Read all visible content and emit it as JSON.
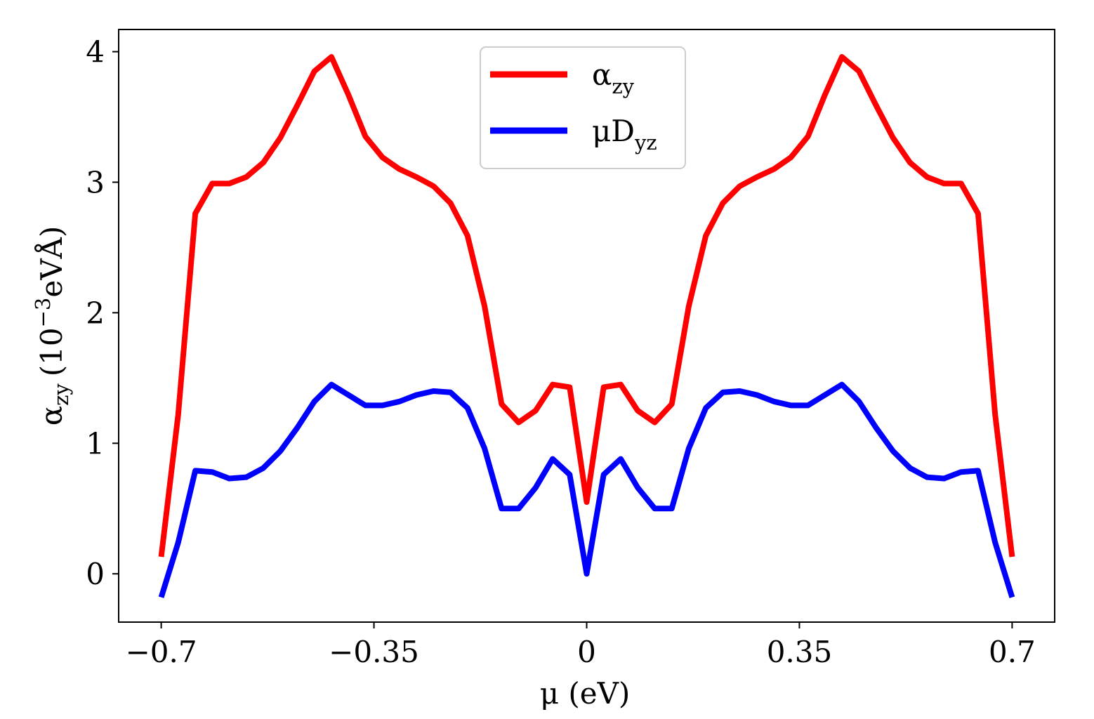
{
  "chart_data": {
    "type": "line",
    "title": "",
    "xlabel": "μ (eV)",
    "ylabel_main": "α",
    "ylabel_sub": "zy",
    "ylabel_unit_prefix": "(10",
    "ylabel_unit_exp": "−3",
    "ylabel_unit_suffix": "eVÅ)",
    "xlim": [
      -0.77,
      0.77
    ],
    "ylim": [
      -0.37,
      4.17
    ],
    "xticks": [
      -0.7,
      -0.35,
      0,
      0.35,
      0.7
    ],
    "xtick_labels": [
      "−0.7",
      "−0.35",
      "0",
      "0.35",
      "0.7"
    ],
    "yticks": [
      0,
      1,
      2,
      3,
      4
    ],
    "ytick_labels": [
      "0",
      "1",
      "2",
      "3",
      "4"
    ],
    "grid": false,
    "legend_position": "top-center",
    "x": [
      -0.7,
      -0.672,
      -0.644,
      -0.616,
      -0.588,
      -0.56,
      -0.532,
      -0.504,
      -0.476,
      -0.448,
      -0.42,
      -0.392,
      -0.364,
      -0.336,
      -0.308,
      -0.28,
      -0.252,
      -0.224,
      -0.196,
      -0.168,
      -0.14,
      -0.112,
      -0.084,
      -0.056,
      -0.028,
      0,
      0.028,
      0.056,
      0.084,
      0.112,
      0.14,
      0.168,
      0.196,
      0.224,
      0.252,
      0.28,
      0.308,
      0.336,
      0.364,
      0.392,
      0.42,
      0.448,
      0.476,
      0.504,
      0.532,
      0.56,
      0.588,
      0.616,
      0.644,
      0.672,
      0.7
    ],
    "series": [
      {
        "name": "α_zy",
        "legend_main": "α",
        "legend_sub": "zy",
        "color": "#ff0000",
        "values": [
          0.13,
          1.22,
          2.76,
          2.99,
          2.99,
          3.04,
          3.15,
          3.34,
          3.59,
          3.85,
          3.96,
          3.67,
          3.35,
          3.19,
          3.1,
          3.04,
          2.97,
          2.84,
          2.59,
          2.05,
          1.3,
          1.16,
          1.25,
          1.45,
          1.43,
          0.55,
          1.43,
          1.45,
          1.25,
          1.16,
          1.3,
          2.05,
          2.59,
          2.84,
          2.97,
          3.04,
          3.1,
          3.19,
          3.35,
          3.67,
          3.96,
          3.85,
          3.59,
          3.34,
          3.15,
          3.04,
          2.99,
          2.99,
          2.76,
          1.22,
          0.13
        ]
      },
      {
        "name": "μD_yz",
        "legend_main": "μD",
        "legend_sub": "yz",
        "color": "#0000ff",
        "values": [
          -0.18,
          0.24,
          0.79,
          0.78,
          0.73,
          0.74,
          0.81,
          0.94,
          1.12,
          1.32,
          1.45,
          1.37,
          1.29,
          1.29,
          1.32,
          1.37,
          1.4,
          1.39,
          1.27,
          0.96,
          0.5,
          0.5,
          0.66,
          0.88,
          0.76,
          0.0,
          0.76,
          0.88,
          0.66,
          0.5,
          0.5,
          0.96,
          1.27,
          1.39,
          1.4,
          1.37,
          1.32,
          1.29,
          1.29,
          1.37,
          1.45,
          1.32,
          1.12,
          0.94,
          0.81,
          0.74,
          0.73,
          0.78,
          0.79,
          0.24,
          -0.18
        ]
      }
    ]
  }
}
